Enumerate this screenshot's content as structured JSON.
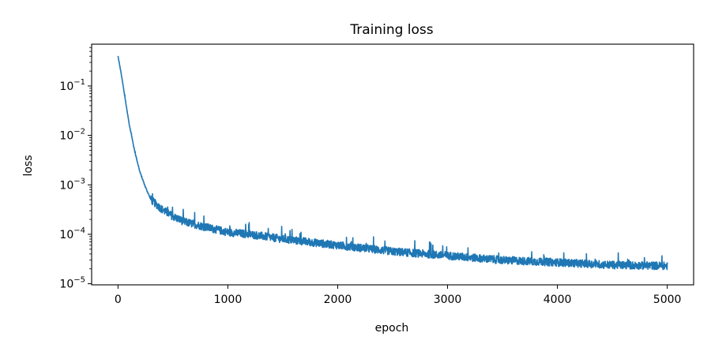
{
  "chart_data": {
    "type": "line",
    "title": "Training loss",
    "xlabel": "epoch",
    "ylabel": "loss",
    "xlim": [
      -240,
      5240
    ],
    "ylim": [
      9.5e-06,
      0.7
    ],
    "yscale": "log",
    "grid": false,
    "legend": "none",
    "x_ticks": [
      0,
      1000,
      2000,
      3000,
      4000,
      5000
    ],
    "x_tick_labels": [
      "0",
      "1000",
      "2000",
      "3000",
      "4000",
      "5000"
    ],
    "y_ticks": [
      1e-05,
      0.0001,
      0.001,
      0.01,
      0.1
    ],
    "y_tick_labels": [
      {
        "base": "10",
        "exp": "−5"
      },
      {
        "base": "10",
        "exp": "−4"
      },
      {
        "base": "10",
        "exp": "−3"
      },
      {
        "base": "10",
        "exp": "−2"
      },
      {
        "base": "10",
        "exp": "−1"
      }
    ],
    "series": [
      {
        "color": "#1f77b4",
        "x": [
          0,
          25,
          50,
          75,
          100,
          150,
          200,
          250,
          300,
          400,
          500,
          600,
          800,
          1000,
          1200,
          1500,
          2000,
          2500,
          3000,
          3500,
          4000,
          4500,
          5000
        ],
        "y": [
          0.4,
          0.2,
          0.09,
          0.04,
          0.018,
          0.005,
          0.0018,
          0.0009,
          0.0005,
          0.00032,
          0.00023,
          0.00018,
          0.00014,
          0.00011,
          0.0001,
          8e-05,
          6e-05,
          4.5e-05,
          3.7e-05,
          3e-05,
          2.7e-05,
          2.4e-05,
          2.3e-05
        ],
        "noise_band_decades": 0.08
      }
    ]
  }
}
